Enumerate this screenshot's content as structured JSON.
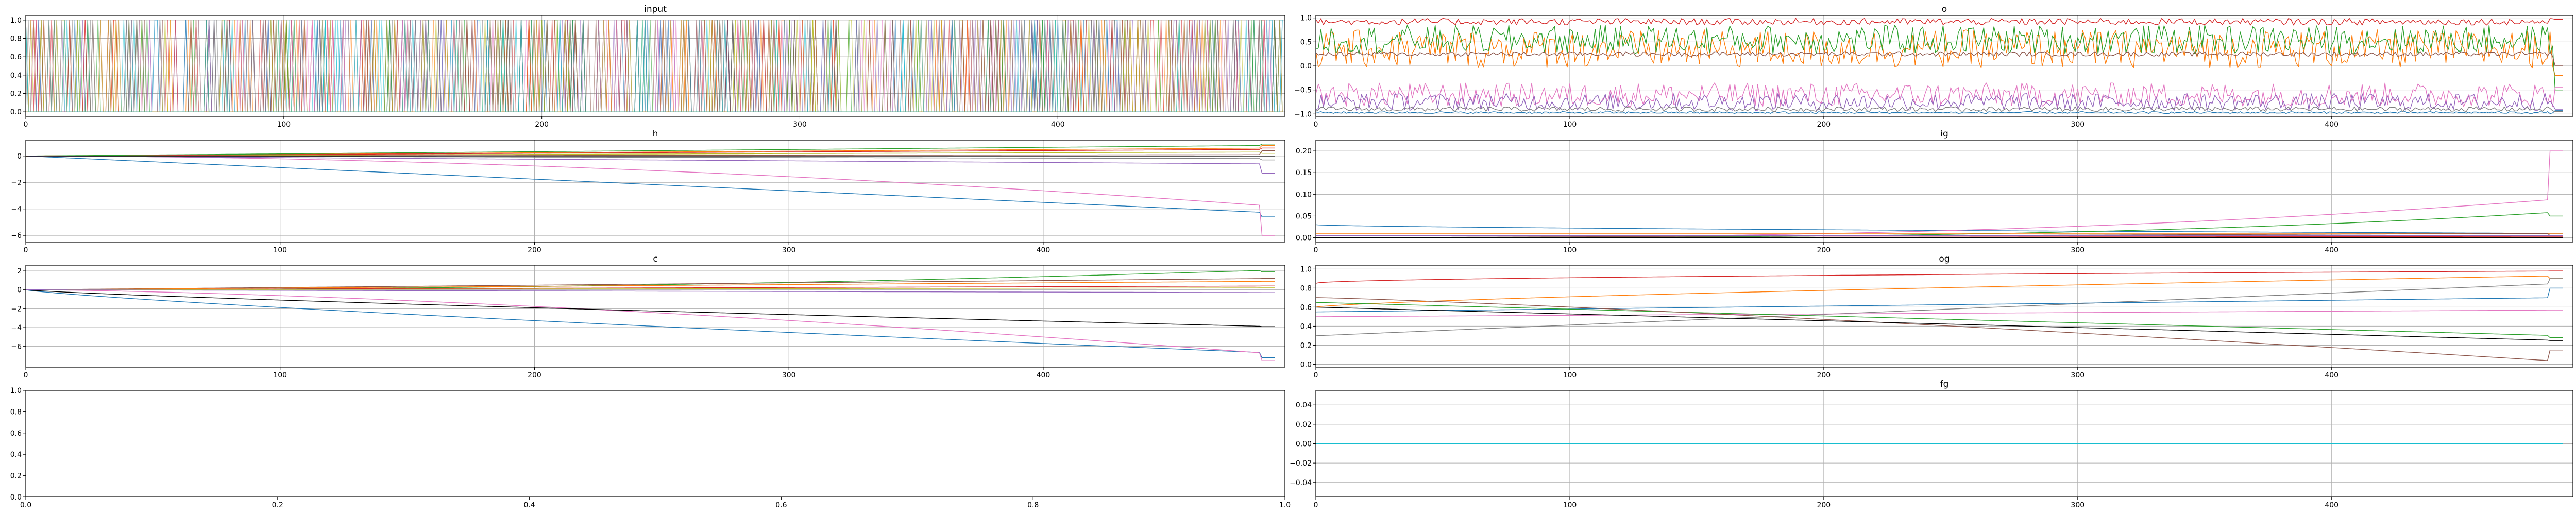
{
  "palette": [
    "#1f77b4",
    "#ff7f0e",
    "#2ca02c",
    "#d62728",
    "#9467bd",
    "#8c564b",
    "#e377c2",
    "#7f7f7f",
    "#bcbd22",
    "#17becf"
  ],
  "chart_data": [
    {
      "id": "input",
      "type": "line",
      "title": "input",
      "xlim": [
        0,
        488
      ],
      "ylim": [
        -0.05,
        1.05
      ],
      "xticks": [
        0,
        100,
        200,
        300,
        400
      ],
      "xtick_labels": [
        "0",
        "100",
        "200",
        "300",
        "400"
      ],
      "yticks": [
        0.0,
        0.2,
        0.4,
        0.6,
        0.8,
        1.0
      ],
      "ytick_labels": [
        "0.0",
        "0.2",
        "0.4",
        "0.6",
        "0.8",
        "1.0"
      ],
      "grid": true,
      "n_points": 488,
      "pattern": "dense binary one-hot input: about 30 series, each stepping between 0.0 and 1.0 at every timestep (approximate)",
      "series": []
    },
    {
      "id": "o",
      "type": "line",
      "title": "o",
      "xlim": [
        0,
        495
      ],
      "ylim": [
        -1.05,
        1.05
      ],
      "xticks": [
        0,
        100,
        200,
        300,
        400
      ],
      "xtick_labels": [
        "0",
        "100",
        "200",
        "300",
        "400"
      ],
      "yticks": [
        -1.0,
        -0.5,
        0.0,
        0.5,
        1.0
      ],
      "ytick_labels": [
        "−1.0",
        "−0.5",
        "0.0",
        "0.5",
        "1.0"
      ],
      "grid": true,
      "n_points": 492,
      "pattern": "noisy lines oscillating around a base level; values approximate",
      "series": [
        {
          "color": "#d62728",
          "base": 0.92,
          "amp": 0.07,
          "end": 0.97
        },
        {
          "color": "#ff7f0e",
          "base": 0.35,
          "amp": 0.4,
          "end": -0.2
        },
        {
          "color": "#2ca02c",
          "base": 0.55,
          "amp": 0.3,
          "end": -0.5
        },
        {
          "color": "#8c564b",
          "base": 0.25,
          "amp": 0.05,
          "end": 0.0
        },
        {
          "color": "#e377c2",
          "base": -0.6,
          "amp": 0.25,
          "end": -0.45
        },
        {
          "color": "#9467bd",
          "base": -0.75,
          "amp": 0.18,
          "end": -0.9
        },
        {
          "color": "#1f77b4",
          "base": -0.97,
          "amp": 0.02,
          "end": -0.93
        },
        {
          "color": "#7f7f7f",
          "base": -0.9,
          "amp": 0.05,
          "end": -0.95
        }
      ]
    },
    {
      "id": "h",
      "type": "line",
      "title": "h",
      "xlim": [
        0,
        495
      ],
      "ylim": [
        -6.5,
        1.2
      ],
      "xticks": [
        0,
        100,
        200,
        300,
        400
      ],
      "xtick_labels": [
        "0",
        "100",
        "200",
        "300",
        "400"
      ],
      "yticks": [
        -6,
        -4,
        -2,
        0
      ],
      "ytick_labels": [
        "−6",
        "−4",
        "−2",
        "0"
      ],
      "grid": true,
      "n_points": 492,
      "pattern": "smooth drift from 0 at t=0 to the end value, sharp change in the last few steps; values approximate",
      "series": [
        {
          "color": "#1f77b4",
          "end": -4.3,
          "curve": 1.0,
          "final": -4.6
        },
        {
          "color": "#e377c2",
          "end": -3.8,
          "curve": 1.8,
          "final": -6.0
        },
        {
          "color": "#9467bd",
          "end": -0.6,
          "curve": 1.0,
          "final": -1.3
        },
        {
          "color": "#7f7f7f",
          "end": -0.2,
          "curve": 1.0,
          "final": -0.3
        },
        {
          "color": "#bcbd22",
          "end": 0.3,
          "curve": 1.0,
          "final": 0.2
        },
        {
          "color": "#ff7f0e",
          "end": 0.6,
          "curve": 1.0,
          "final": 0.8
        },
        {
          "color": "#d62728",
          "end": 0.5,
          "curve": 1.0,
          "final": 0.6
        },
        {
          "color": "#2ca02c",
          "end": 0.8,
          "curve": 1.0,
          "final": 0.9
        },
        {
          "color": "#8c564b",
          "end": 0.1,
          "curve": 1.0,
          "final": 0.4
        },
        {
          "color": "#000000",
          "end": 0.0,
          "curve": 1.0,
          "final": 0.0
        }
      ]
    },
    {
      "id": "ig",
      "type": "line",
      "title": "ig",
      "xlim": [
        0,
        495
      ],
      "ylim": [
        -0.01,
        0.225
      ],
      "xticks": [
        0,
        100,
        200,
        300,
        400
      ],
      "xtick_labels": [
        "0",
        "100",
        "200",
        "300",
        "400"
      ],
      "yticks": [
        0.0,
        0.05,
        0.1,
        0.15,
        0.2
      ],
      "ytick_labels": [
        "0.00",
        "0.05",
        "0.10",
        "0.15",
        "0.20"
      ],
      "grid": true,
      "n_points": 492,
      "pattern": "smooth curves from start to end, spike near the last steps; values approximate",
      "series": [
        {
          "color": "#1f77b4",
          "start": 0.03,
          "end": 0.01,
          "curve": 0.6,
          "final": 0.01
        },
        {
          "color": "#e377c2",
          "start": 0.0,
          "end": 0.09,
          "curve": 2.5,
          "final": 0.2
        },
        {
          "color": "#2ca02c",
          "start": 0.0,
          "end": 0.06,
          "curve": 3.0,
          "final": 0.05
        },
        {
          "color": "#ff7f0e",
          "start": 0.01,
          "end": 0.01,
          "curve": 1.0,
          "final": 0.01
        },
        {
          "color": "#8c564b",
          "start": 0.0,
          "end": 0.01,
          "curve": 1.0,
          "final": 0.005
        },
        {
          "color": "#9467bd",
          "start": 0.005,
          "end": 0.005,
          "curve": 1.0,
          "final": 0.005
        },
        {
          "color": "#d62728",
          "start": 0.0,
          "end": 0.003,
          "curve": 1.0,
          "final": 0.003
        },
        {
          "color": "#000000",
          "start": 0.0,
          "end": 0.0,
          "curve": 1.0,
          "final": 0.0
        }
      ]
    },
    {
      "id": "c",
      "type": "line",
      "title": "c",
      "xlim": [
        0,
        495
      ],
      "ylim": [
        -8.2,
        2.6
      ],
      "xticks": [
        0,
        100,
        200,
        300,
        400
      ],
      "xtick_labels": [
        "0",
        "100",
        "200",
        "300",
        "400"
      ],
      "yticks": [
        -6,
        -4,
        -2,
        0,
        2
      ],
      "ytick_labels": [
        "−6",
        "−4",
        "−2",
        "0",
        "2"
      ],
      "grid": true,
      "n_points": 492,
      "pattern": "smooth drift from 0 at t=0 to the end value, small change in the last steps; values approximate",
      "series": [
        {
          "color": "#1f77b4",
          "end": -6.7,
          "curve": 0.8,
          "final": -7.2
        },
        {
          "color": "#e377c2",
          "end": -6.8,
          "curve": 1.5,
          "final": -7.5
        },
        {
          "color": "#000000",
          "end": -3.9,
          "curve": 0.8,
          "final": -3.9
        },
        {
          "color": "#2ca02c",
          "end": 2.1,
          "curve": 2.0,
          "final": 1.9
        },
        {
          "color": "#8c564b",
          "end": 1.2,
          "curve": 1.0,
          "final": 1.2
        },
        {
          "color": "#ff7f0e",
          "end": 0.9,
          "curve": 1.0,
          "final": 0.9
        },
        {
          "color": "#d62728",
          "end": 0.4,
          "curve": 1.0,
          "final": 0.4
        },
        {
          "color": "#bcbd22",
          "end": 0.2,
          "curve": 1.0,
          "final": 0.2
        },
        {
          "color": "#9467bd",
          "end": -0.3,
          "curve": 1.0,
          "final": -0.3
        }
      ]
    },
    {
      "id": "og",
      "type": "line",
      "title": "og",
      "xlim": [
        0,
        495
      ],
      "ylim": [
        -0.03,
        1.04
      ],
      "xticks": [
        0,
        100,
        200,
        300,
        400
      ],
      "xtick_labels": [
        "0",
        "100",
        "200",
        "300",
        "400"
      ],
      "yticks": [
        0.0,
        0.2,
        0.4,
        0.6,
        0.8,
        1.0
      ],
      "ytick_labels": [
        "0.0",
        "0.2",
        "0.4",
        "0.6",
        "0.8",
        "1.0"
      ],
      "grid": true,
      "n_points": 492,
      "pattern": "smooth monotone curves from start to end with a drop or spike at the last steps; values approximate",
      "series": [
        {
          "color": "#d62728",
          "start": 0.85,
          "end": 0.98,
          "curve": 0.5,
          "final": 0.98
        },
        {
          "color": "#ff7f0e",
          "start": 0.6,
          "end": 0.93,
          "curve": 0.7,
          "final": 0.9
        },
        {
          "color": "#7f7f7f",
          "start": 0.3,
          "end": 0.85,
          "curve": 1.0,
          "final": 0.9
        },
        {
          "color": "#1f77b4",
          "start": 0.55,
          "end": 0.7,
          "curve": 1.0,
          "final": 0.8
        },
        {
          "color": "#e377c2",
          "start": 0.5,
          "end": 0.57,
          "curve": 1.0,
          "final": 0.57
        },
        {
          "color": "#2ca02c",
          "start": 0.65,
          "end": 0.3,
          "curve": 1.0,
          "final": 0.28
        },
        {
          "color": "#8c564b",
          "start": 0.7,
          "end": 0.03,
          "curve": 1.2,
          "final": 0.15
        },
        {
          "color": "#000000",
          "start": 0.6,
          "end": 0.25,
          "curve": 1.0,
          "final": 0.25
        }
      ]
    },
    {
      "id": "empty",
      "type": "line",
      "title": "",
      "xlim": [
        0.0,
        1.0
      ],
      "ylim": [
        0.0,
        1.0
      ],
      "xticks": [
        0.0,
        0.2,
        0.4,
        0.6,
        0.8,
        1.0
      ],
      "xtick_labels": [
        "0.0",
        "0.2",
        "0.4",
        "0.6",
        "0.8",
        "1.0"
      ],
      "yticks": [
        0.0,
        0.2,
        0.4,
        0.6,
        0.8,
        1.0
      ],
      "ytick_labels": [
        "0.0",
        "0.2",
        "0.4",
        "0.6",
        "0.8",
        "1.0"
      ],
      "grid": false,
      "n_points": 0,
      "series": []
    },
    {
      "id": "fg",
      "type": "line",
      "title": "fg",
      "xlim": [
        0,
        495
      ],
      "ylim": [
        -0.055,
        0.055
      ],
      "xticks": [
        0,
        100,
        200,
        300,
        400
      ],
      "xtick_labels": [
        "0",
        "100",
        "200",
        "300",
        "400"
      ],
      "yticks": [
        -0.04,
        -0.02,
        0.0,
        0.02,
        0.04
      ],
      "ytick_labels": [
        "−0.04",
        "−0.02",
        "0.00",
        "0.02",
        "0.04"
      ],
      "grid": true,
      "n_points": 492,
      "pattern": "all series constant at 0",
      "series": [
        {
          "color": "#17becf",
          "start": 0.0,
          "end": 0.0,
          "curve": 1.0,
          "final": 0.0
        }
      ]
    }
  ]
}
